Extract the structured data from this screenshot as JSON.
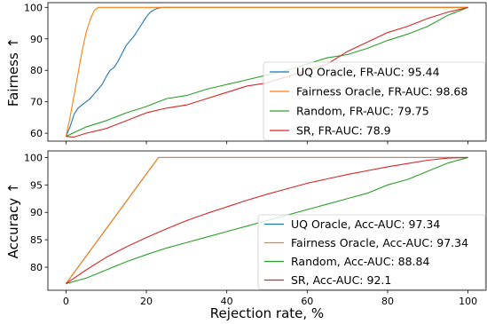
{
  "chart_data": [
    {
      "type": "line",
      "ylabel": "Fairness ↑",
      "xlabel": "",
      "xlim": [
        -4.5,
        104.5
      ],
      "ylim": [
        57.5,
        101.5
      ],
      "xticks": [
        0,
        20,
        40,
        60,
        80,
        100
      ],
      "xtick_labels_visible": false,
      "yticks": [
        60,
        70,
        80,
        90,
        100
      ],
      "grid": false,
      "legend_placement": "lower-right",
      "series": [
        {
          "name": "UQ Oracle, FR-AUC: 95.44",
          "color": "#1f77b4",
          "x": [
            0,
            1,
            2,
            3,
            4,
            5,
            6,
            7,
            8,
            9,
            10,
            11,
            12,
            13,
            14,
            15,
            16,
            17,
            18,
            19,
            20,
            21,
            22,
            23,
            24,
            100
          ],
          "y": [
            59,
            62,
            66,
            68,
            69,
            70,
            71,
            72.5,
            74,
            75.5,
            78,
            80,
            81,
            83,
            85.5,
            88,
            89.5,
            91,
            93,
            95,
            97,
            98.5,
            99.3,
            99.8,
            100,
            100
          ]
        },
        {
          "name": "Fairness Oracle, FR-AUC: 98.68",
          "color": "#ff7f0e",
          "x": [
            0,
            1,
            2,
            3,
            4,
            5,
            6,
            7,
            8,
            100
          ],
          "y": [
            59,
            65,
            72,
            79,
            86,
            92,
            96,
            99,
            100,
            100
          ]
        },
        {
          "name": "Random, FR-AUC: 79.75",
          "color": "#2ca02c",
          "x": [
            0,
            5,
            10,
            15,
            20,
            25,
            30,
            35,
            40,
            45,
            50,
            55,
            60,
            65,
            70,
            75,
            80,
            85,
            90,
            95,
            100
          ],
          "y": [
            59,
            62,
            64,
            66.5,
            68.5,
            71,
            72,
            74,
            75.5,
            77,
            78.5,
            80,
            82,
            84,
            85,
            87,
            89.5,
            91.5,
            94,
            97.5,
            100
          ]
        },
        {
          "name": "SR, FR-AUC: 78.9",
          "color": "#d62728",
          "x": [
            0,
            2,
            5,
            10,
            15,
            20,
            25,
            30,
            35,
            40,
            45,
            50,
            55,
            60,
            65,
            70,
            75,
            80,
            85,
            90,
            95,
            100
          ],
          "y": [
            59,
            58.8,
            60,
            61.5,
            64,
            66.5,
            68,
            69,
            71,
            73,
            75,
            76,
            78,
            80,
            82,
            86,
            89,
            92,
            94,
            96.5,
            98.5,
            100
          ]
        }
      ]
    },
    {
      "type": "line",
      "ylabel": "Accuracy ↑",
      "xlabel": "Rejection rate, %",
      "xlim": [
        -4.5,
        104.5
      ],
      "ylim": [
        75.8,
        101.2
      ],
      "xticks": [
        0,
        20,
        40,
        60,
        80,
        100
      ],
      "xtick_labels": [
        "0",
        "20",
        "40",
        "60",
        "80",
        "100"
      ],
      "yticks": [
        80,
        85,
        90,
        95,
        100
      ],
      "grid": false,
      "legend_placement": "lower-right",
      "series": [
        {
          "name": "UQ Oracle, Acc-AUC: 97.34",
          "color": "#1f77b4",
          "x": [
            0,
            23,
            100
          ],
          "y": [
            77,
            100,
            100
          ]
        },
        {
          "name": "Fairness Oracle, Acc-AUC: 97.34",
          "color": "#ff7f0e",
          "x": [
            0,
            23,
            100
          ],
          "y": [
            77,
            100,
            100
          ]
        },
        {
          "name": "Random, Acc-AUC: 88.84",
          "color": "#2ca02c",
          "x": [
            0,
            5,
            10,
            15,
            20,
            25,
            30,
            35,
            40,
            45,
            50,
            55,
            60,
            65,
            70,
            75,
            80,
            85,
            90,
            95,
            100
          ],
          "y": [
            77,
            78,
            79.5,
            81,
            82.3,
            83.5,
            84.5,
            85.5,
            86.5,
            87.5,
            88.5,
            89.5,
            90.5,
            91.5,
            92.5,
            93.5,
            95,
            96,
            97.5,
            99,
            100
          ]
        },
        {
          "name": "SR, Acc-AUC: 92.1",
          "color": "#d62728",
          "x": [
            0,
            5,
            10,
            15,
            20,
            25,
            30,
            35,
            40,
            45,
            50,
            55,
            60,
            65,
            70,
            75,
            80,
            85,
            90,
            95,
            100
          ],
          "y": [
            77,
            79.5,
            81.8,
            83.7,
            85.4,
            87,
            88.5,
            89.8,
            91,
            92.2,
            93.3,
            94.3,
            95.3,
            96.1,
            96.9,
            97.6,
            98.3,
            98.9,
            99.5,
            99.9,
            100
          ]
        }
      ]
    }
  ]
}
